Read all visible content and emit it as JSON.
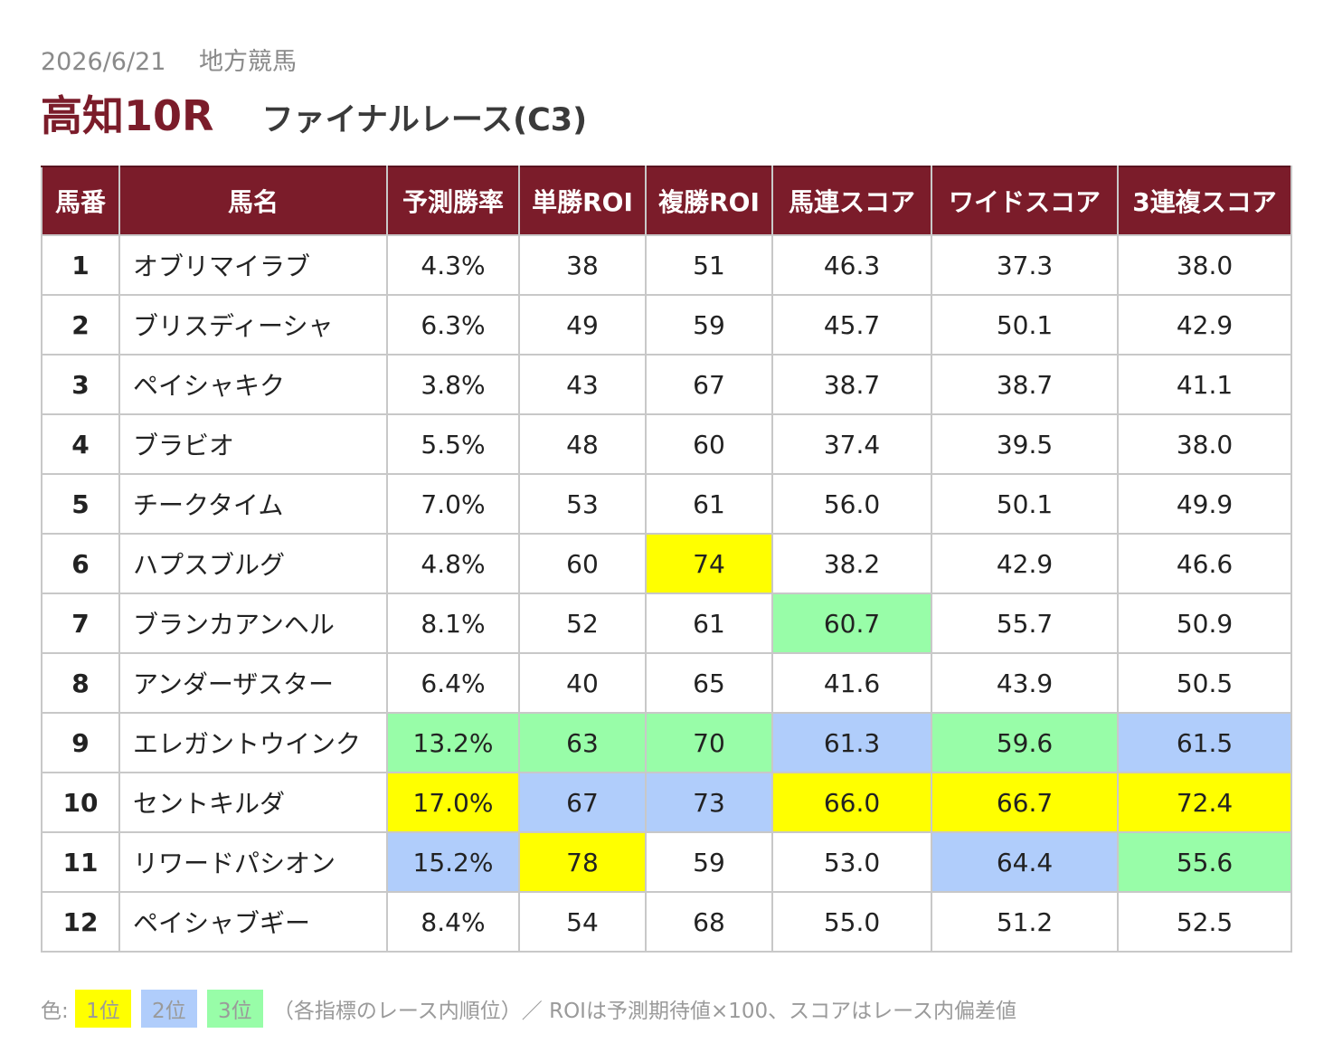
{
  "header": {
    "date": "2026/6/21",
    "category": "地方競馬",
    "venue_race": "高知10R",
    "race_name": "ファイナルレース(C3)"
  },
  "table": {
    "columns": [
      "馬番",
      "馬名",
      "予測勝率",
      "単勝ROI",
      "複勝ROI",
      "馬連スコア",
      "ワイドスコア",
      "3連複スコア"
    ],
    "rows": [
      {
        "num": "1",
        "name": "オブリマイラブ",
        "win_prob": "4.3%",
        "win_roi": "38",
        "place_roi": "51",
        "quinella": "46.3",
        "wide": "37.3",
        "trio": "38.0"
      },
      {
        "num": "2",
        "name": "ブリスディーシャ",
        "win_prob": "6.3%",
        "win_roi": "49",
        "place_roi": "59",
        "quinella": "45.7",
        "wide": "50.1",
        "trio": "42.9"
      },
      {
        "num": "3",
        "name": "ペイシャキク",
        "win_prob": "3.8%",
        "win_roi": "43",
        "place_roi": "67",
        "quinella": "38.7",
        "wide": "38.7",
        "trio": "41.1"
      },
      {
        "num": "4",
        "name": "ブラビオ",
        "win_prob": "5.5%",
        "win_roi": "48",
        "place_roi": "60",
        "quinella": "37.4",
        "wide": "39.5",
        "trio": "38.0"
      },
      {
        "num": "5",
        "name": "チークタイム",
        "win_prob": "7.0%",
        "win_roi": "53",
        "place_roi": "61",
        "quinella": "56.0",
        "wide": "50.1",
        "trio": "49.9"
      },
      {
        "num": "6",
        "name": "ハプスブルグ",
        "win_prob": "4.8%",
        "win_roi": "60",
        "place_roi": "74",
        "quinella": "38.2",
        "wide": "42.9",
        "trio": "46.6"
      },
      {
        "num": "7",
        "name": "ブランカアンヘル",
        "win_prob": "8.1%",
        "win_roi": "52",
        "place_roi": "61",
        "quinella": "60.7",
        "wide": "55.7",
        "trio": "50.9"
      },
      {
        "num": "8",
        "name": "アンダーザスター",
        "win_prob": "6.4%",
        "win_roi": "40",
        "place_roi": "65",
        "quinella": "41.6",
        "wide": "43.9",
        "trio": "50.5"
      },
      {
        "num": "9",
        "name": "エレガントウインク",
        "win_prob": "13.2%",
        "win_roi": "63",
        "place_roi": "70",
        "quinella": "61.3",
        "wide": "59.6",
        "trio": "61.5"
      },
      {
        "num": "10",
        "name": "セントキルダ",
        "win_prob": "17.0%",
        "win_roi": "67",
        "place_roi": "73",
        "quinella": "66.0",
        "wide": "66.7",
        "trio": "72.4"
      },
      {
        "num": "11",
        "name": "リワードパシオン",
        "win_prob": "15.2%",
        "win_roi": "78",
        "place_roi": "59",
        "quinella": "53.0",
        "wide": "64.4",
        "trio": "55.6"
      },
      {
        "num": "12",
        "name": "ペイシャブギー",
        "win_prob": "8.4%",
        "win_roi": "54",
        "place_roi": "68",
        "quinella": "55.0",
        "wide": "51.2",
        "trio": "52.5"
      }
    ],
    "rank_colors": {
      "rank1": "#ffff00",
      "rank2": "#b0cdfb",
      "rank3": "#98fda8"
    }
  },
  "legend": {
    "prefix": "色:",
    "rank1": "1位",
    "rank2": "2位",
    "rank3": "3位",
    "note": "（各指標のレース内順位）／ ROIは予測期待値×100、スコアはレース内偏差値"
  }
}
